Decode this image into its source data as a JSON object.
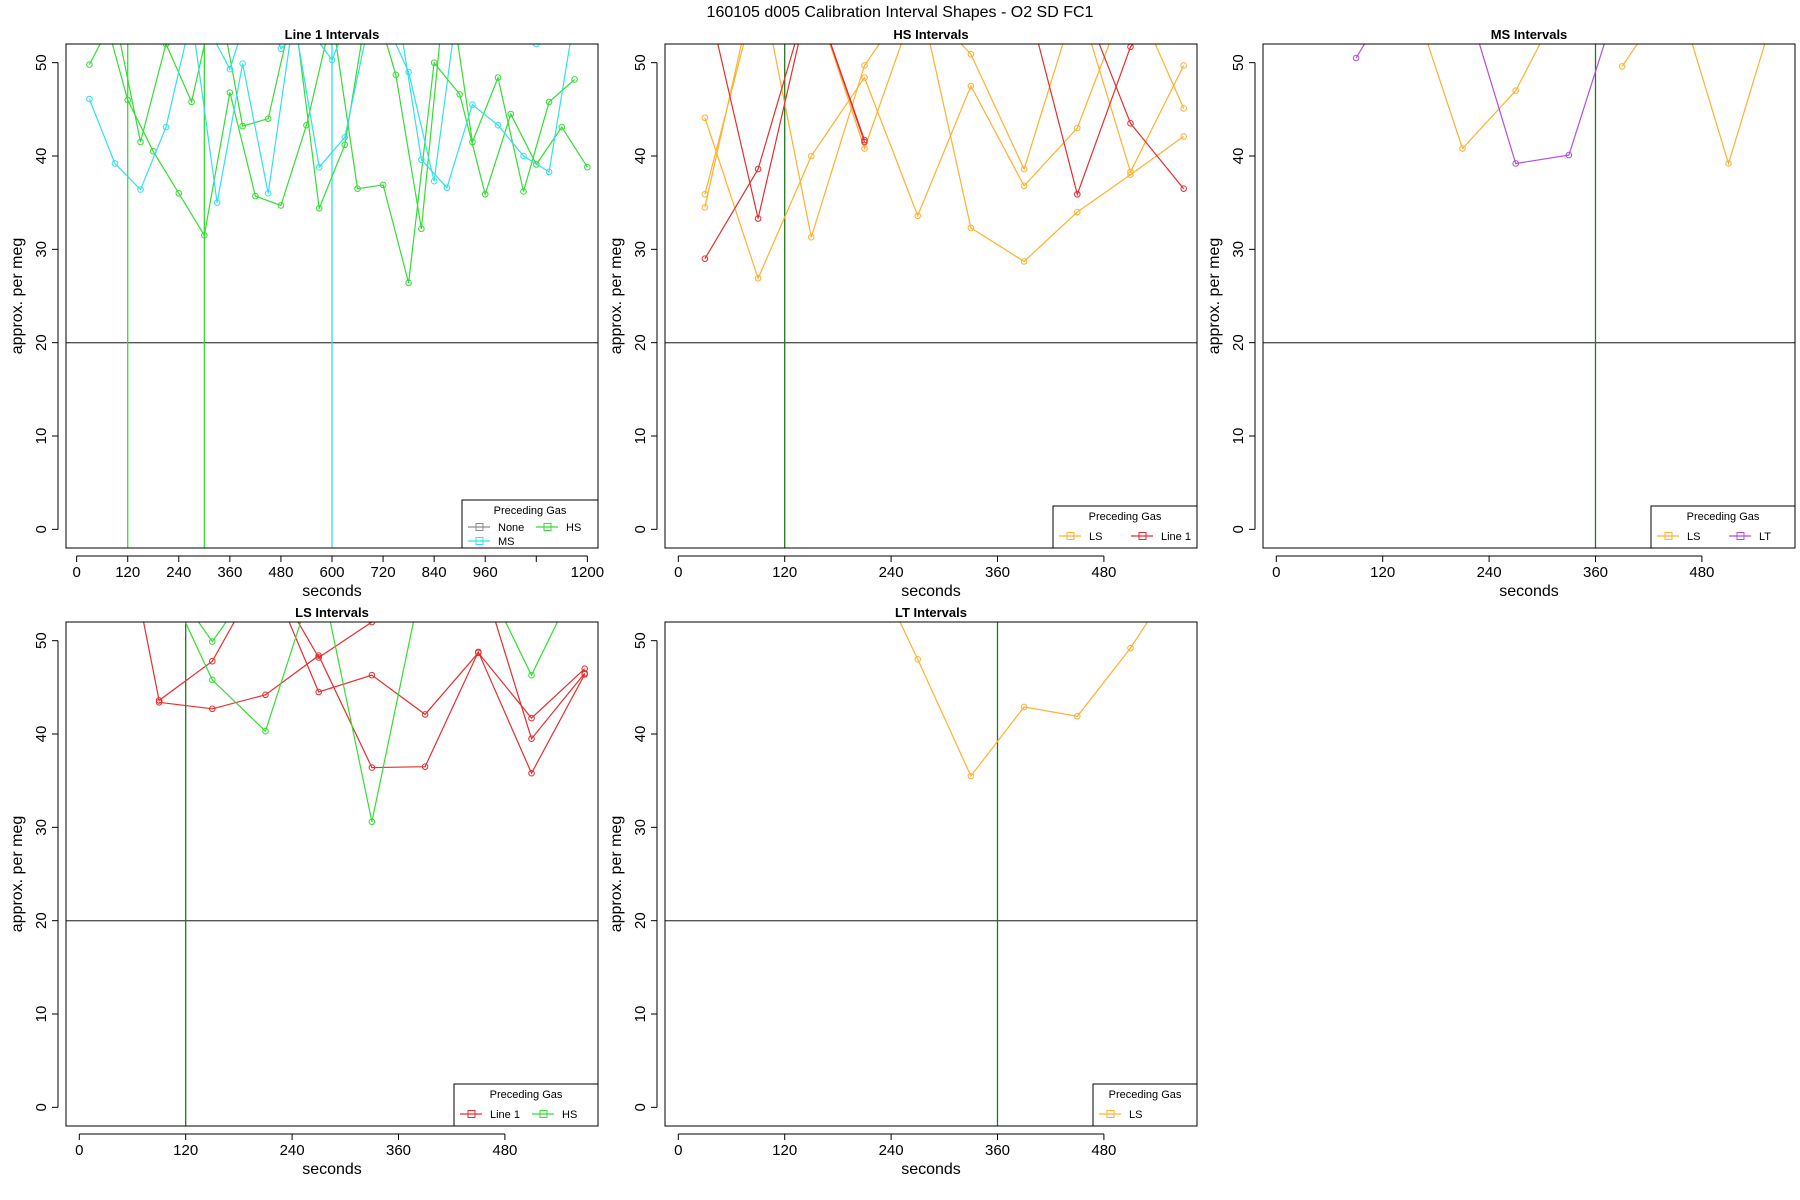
{
  "page_title": "160105   d005   Calibration Interval Shapes - O2 SD FC1",
  "colors": {
    "None": "#8c8c8c",
    "HS": "#33dd33",
    "MS": "#33e0e8",
    "LS": "#ffb030",
    "Line 1": "#e62e2e",
    "LT": "#b44ce0",
    "reference_line": "#555555",
    "marker_line": "#1f7a1f"
  },
  "chart_data": [
    {
      "type": "line",
      "title": "Line 1 Intervals",
      "xlabel": "seconds",
      "ylabel": "approx. per meg",
      "xlim": [
        -25,
        1225
      ],
      "ylim": [
        -2,
        52
      ],
      "xticks": [
        0,
        120,
        240,
        360,
        480,
        600,
        720,
        840,
        960,
        1080,
        1200
      ],
      "xtick_labels": [
        "0",
        "120",
        "240",
        "360",
        "480",
        "600",
        "720",
        "840",
        "960",
        "",
        "1200"
      ],
      "yticks": [
        0,
        10,
        20,
        30,
        40,
        50
      ],
      "hline": 20,
      "vlines": [
        {
          "x": 120,
          "color": "HS"
        },
        {
          "x": 300,
          "color": "HS"
        },
        {
          "x": 600,
          "color": "MS"
        }
      ],
      "legend": {
        "title": "Preceding Gas",
        "entries": [
          "None",
          "MS",
          "HS"
        ],
        "position": "bottom-right"
      },
      "series": [
        {
          "name": "HS",
          "x": [
            30,
            90,
            150,
            210,
            270,
            330,
            390,
            450,
            510,
            570,
            630,
            690,
            750,
            810,
            870,
            930,
            990,
            1050,
            1110,
            1170
          ],
          "y": [
            49.8,
            55,
            41.5,
            52,
            45.8,
            58,
            43.2,
            44,
            56,
            34.4,
            41.2,
            58,
            48.7,
            32.2,
            60,
            41.5,
            48.4,
            36.2,
            45.8,
            48.2
          ]
        },
        {
          "name": "HS",
          "x": [
            60,
            120,
            180,
            240,
            300,
            360,
            420,
            480,
            540,
            600,
            660,
            720,
            780,
            840,
            900,
            960,
            1020,
            1080,
            1140,
            1200
          ],
          "y": [
            56,
            46,
            40.5,
            36,
            31.5,
            46.8,
            35.7,
            34.7,
            43.3,
            55,
            36.5,
            36.9,
            26.4,
            50,
            46.6,
            35.9,
            44.5,
            39.1,
            43.1,
            38.8
          ]
        },
        {
          "name": "MS",
          "x": [
            30,
            90,
            150,
            210,
            270,
            330,
            390,
            450,
            510,
            570,
            630,
            690,
            750,
            810,
            870,
            930,
            990,
            1050,
            1110,
            1170
          ],
          "y": [
            46.1,
            39.2,
            36.4,
            43.1,
            55,
            35,
            49.9,
            36,
            55,
            38.8,
            42,
            55,
            57,
            39.6,
            36.6,
            45.5,
            43.3,
            40,
            38.3,
            55
          ]
        },
        {
          "name": "MS",
          "x": [
            60,
            120,
            180,
            240,
            300,
            360,
            420,
            480,
            540,
            600,
            660,
            720,
            780,
            840,
            900,
            960,
            1020,
            1080,
            1140,
            1200
          ],
          "y": [
            57,
            55,
            53,
            56,
            54.5,
            49.3,
            58,
            51.5,
            54,
            50.3,
            57,
            55,
            49,
            37.3,
            58,
            57,
            55,
            52,
            56,
            54.5
          ]
        }
      ]
    },
    {
      "type": "line",
      "title": "HS Intervals",
      "xlabel": "seconds",
      "ylabel": "approx. per meg",
      "xlim": [
        -15,
        585
      ],
      "ylim": [
        -2,
        52
      ],
      "xticks": [
        0,
        120,
        240,
        360,
        480
      ],
      "xtick_labels": [
        "0",
        "120",
        "240",
        "360",
        "480"
      ],
      "yticks": [
        0,
        10,
        20,
        30,
        40,
        50
      ],
      "hline": 20,
      "vlines": [
        {
          "x": 120,
          "color": "marker_line"
        }
      ],
      "legend": {
        "title": "Preceding Gas",
        "entries": [
          "LS",
          "Line 1"
        ],
        "position": "bottom-right"
      },
      "series": [
        {
          "name": "LS",
          "x": [
            30,
            90,
            150,
            210,
            270,
            330,
            390,
            450,
            510,
            570
          ],
          "y": [
            44.1,
            26.9,
            40,
            48.4,
            33.6,
            47.5,
            36.8,
            43,
            58,
            45.1
          ]
        },
        {
          "name": "LS",
          "x": [
            30,
            90,
            150,
            210,
            270,
            330,
            390,
            450,
            510,
            570
          ],
          "y": [
            34.5,
            60,
            31.3,
            49.7,
            58,
            32.3,
            28.7,
            34,
            38,
            42.1
          ]
        },
        {
          "name": "LS",
          "x": [
            30,
            90,
            150,
            210,
            270,
            330,
            390,
            450,
            510,
            570
          ],
          "y": [
            35.9,
            58,
            58,
            40.8,
            57,
            50.9,
            38.6,
            57,
            38.3,
            49.7
          ]
        },
        {
          "name": "Line 1",
          "x": [
            30,
            90,
            150,
            210
          ],
          "y": [
            29,
            38.6,
            58,
            41.5
          ]
        },
        {
          "name": "Line 1",
          "x": [
            30,
            90,
            150,
            210
          ],
          "y": [
            58,
            33.3,
            58,
            41.7
          ]
        },
        {
          "name": "Line 1",
          "x": [
            390,
            450,
            510,
            570
          ],
          "y": [
            58,
            35.9,
            51.7,
            58
          ]
        },
        {
          "name": "Line 1",
          "x": [
            450,
            510,
            570
          ],
          "y": [
            58,
            43.5,
            36.5
          ]
        }
      ]
    },
    {
      "type": "line",
      "title": "MS Intervals",
      "xlabel": "seconds",
      "ylabel": "approx. per meg",
      "xlim": [
        -15,
        585
      ],
      "ylim": [
        -2,
        52
      ],
      "xticks": [
        0,
        120,
        240,
        360,
        480
      ],
      "xtick_labels": [
        "0",
        "120",
        "240",
        "360",
        "480"
      ],
      "yticks": [
        0,
        10,
        20,
        30,
        40,
        50
      ],
      "hline": 20,
      "vlines": [
        {
          "x": 360,
          "color": "marker_line"
        }
      ],
      "legend": {
        "title": "Preceding Gas",
        "entries": [
          "LS",
          "LT"
        ],
        "position": "bottom-right"
      },
      "series": [
        {
          "name": "LS",
          "x": [
            150,
            210,
            270,
            330
          ],
          "y": [
            58,
            40.8,
            47,
            58
          ]
        },
        {
          "name": "LS",
          "x": [
            390,
            450,
            510,
            570
          ],
          "y": [
            49.6,
            58,
            39.2,
            58
          ]
        },
        {
          "name": "LT",
          "x": [
            90,
            150
          ],
          "y": [
            50.5,
            60
          ]
        },
        {
          "name": "LT",
          "x": [
            210,
            270,
            330,
            390
          ],
          "y": [
            58,
            39.2,
            40.1,
            58
          ]
        }
      ]
    },
    {
      "type": "line",
      "title": "LS Intervals",
      "xlabel": "seconds",
      "ylabel": "approx. per meg",
      "xlim": [
        -15,
        585
      ],
      "ylim": [
        -2,
        52
      ],
      "xticks": [
        0,
        120,
        240,
        360,
        480
      ],
      "xtick_labels": [
        "0",
        "120",
        "240",
        "360",
        "480"
      ],
      "yticks": [
        0,
        10,
        20,
        30,
        40,
        50
      ],
      "hline": 20,
      "vlines": [
        {
          "x": 120,
          "color": "marker_line"
        }
      ],
      "legend": {
        "title": "Preceding Gas",
        "entries": [
          "Line 1",
          "HS"
        ],
        "position": "bottom-right"
      },
      "series": [
        {
          "name": "Line 1",
          "x": [
            90,
            150,
            210,
            270,
            330,
            390,
            450,
            510,
            570
          ],
          "y": [
            43.4,
            42.7,
            44.2,
            48.4,
            36.4,
            36.5,
            48.8,
            35.8,
            46.4
          ]
        },
        {
          "name": "Line 1",
          "x": [
            60,
            90,
            150,
            210,
            270,
            330,
            390,
            450,
            510,
            570
          ],
          "y": [
            58,
            43.6,
            47.8,
            58,
            44.5,
            46.3,
            42.1,
            48.7,
            41.7,
            47
          ]
        },
        {
          "name": "Line 1",
          "x": [
            210,
            270,
            330,
            390,
            450,
            510,
            570
          ],
          "y": [
            58,
            48.2,
            52,
            58,
            58,
            39.5,
            46.5
          ]
        },
        {
          "name": "HS",
          "x": [
            90,
            150,
            210,
            270,
            330,
            390
          ],
          "y": [
            58,
            45.8,
            40.3,
            58,
            30.6,
            58
          ]
        },
        {
          "name": "HS",
          "x": [
            90,
            150,
            210
          ],
          "y": [
            58,
            49.9,
            58
          ]
        },
        {
          "name": "HS",
          "x": [
            450,
            510,
            570
          ],
          "y": [
            58,
            46.3,
            58
          ]
        }
      ]
    },
    {
      "type": "line",
      "title": "LT Intervals",
      "xlabel": "seconds",
      "ylabel": "approx. per meg",
      "xlim": [
        -15,
        585
      ],
      "ylim": [
        -2,
        52
      ],
      "xticks": [
        0,
        120,
        240,
        360,
        480
      ],
      "xtick_labels": [
        "0",
        "120",
        "240",
        "360",
        "480"
      ],
      "yticks": [
        0,
        10,
        20,
        30,
        40,
        50
      ],
      "hline": 20,
      "vlines": [
        {
          "x": 360,
          "color": "marker_line"
        }
      ],
      "legend": {
        "title": "Preceding Gas",
        "entries": [
          "LS"
        ],
        "position": "bottom-right"
      },
      "series": [
        {
          "name": "LS",
          "x": [
            210,
            270,
            330,
            390,
            450,
            510,
            570
          ],
          "y": [
            60,
            48,
            35.5,
            42.9,
            41.9,
            49.2,
            58
          ]
        }
      ]
    }
  ]
}
